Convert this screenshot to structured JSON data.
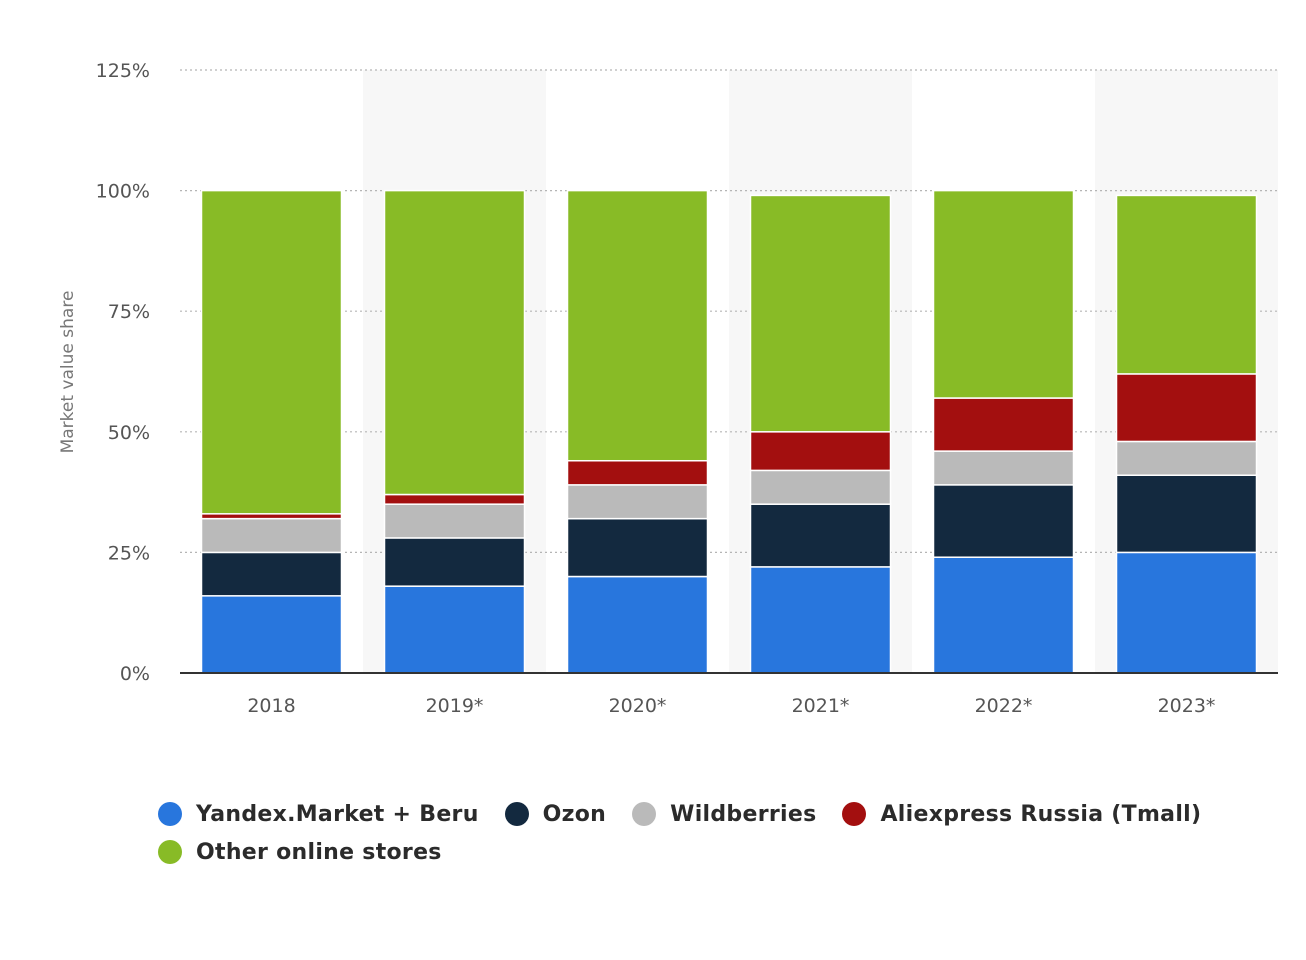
{
  "chart_data": {
    "type": "bar",
    "stacked": true,
    "categories": [
      "2018",
      "2019*",
      "2020*",
      "2021*",
      "2022*",
      "2023*"
    ],
    "series": [
      {
        "name": "Yandex.Market + Beru",
        "color": "#2876dd",
        "values": [
          16,
          18,
          20,
          22,
          24,
          25
        ]
      },
      {
        "name": "Ozon",
        "color": "#13293f",
        "values": [
          9,
          10,
          12,
          13,
          15,
          16
        ]
      },
      {
        "name": "Wildberries",
        "color": "#bababa",
        "values": [
          7,
          7,
          7,
          7,
          7,
          7
        ]
      },
      {
        "name": "Aliexpress Russia (Tmall)",
        "color": "#a30f0f",
        "values": [
          1,
          2,
          5,
          8,
          11,
          14
        ]
      },
      {
        "name": "Other online stores",
        "color": "#88bb26",
        "values": [
          67,
          63,
          56,
          49,
          43,
          37
        ]
      }
    ],
    "ylabel": "Market value share",
    "xlabel": "",
    "ylim": [
      0,
      125
    ],
    "yticks": [
      0,
      25,
      50,
      75,
      100,
      125
    ],
    "ytick_labels": [
      "0%",
      "25%",
      "50%",
      "75%",
      "100%",
      "125%"
    ],
    "grid": true,
    "legend_position": "bottom-left"
  }
}
